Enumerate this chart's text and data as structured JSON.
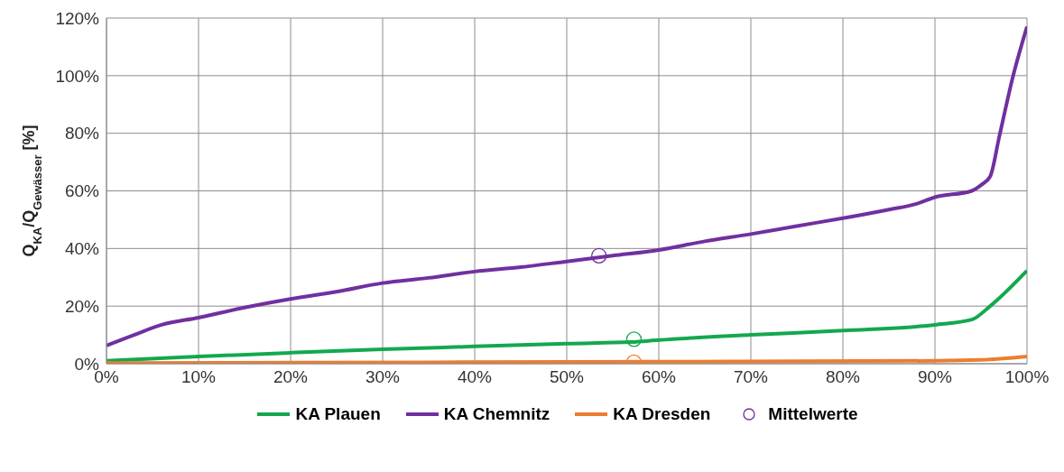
{
  "chart_data": {
    "type": "line",
    "ylabel": "Q$_{KA}$/Q$_{Gewässer}$ [%]",
    "xlim": [
      0,
      100
    ],
    "xticks": [
      {
        "value": 0,
        "label": "0%"
      },
      {
        "value": 10,
        "label": "10%"
      },
      {
        "value": 20,
        "label": "20%"
      },
      {
        "value": 30,
        "label": "30%"
      },
      {
        "value": 40,
        "label": "40%"
      },
      {
        "value": 50,
        "label": "50%"
      },
      {
        "value": 60,
        "label": "60%"
      },
      {
        "value": 70,
        "label": "70%"
      },
      {
        "value": 80,
        "label": "80%"
      },
      {
        "value": 90,
        "label": "90%"
      },
      {
        "value": 100,
        "label": "100%"
      }
    ],
    "ylim": [
      0,
      120
    ],
    "yticks": [
      {
        "value": 0,
        "label": "0%"
      },
      {
        "value": 20,
        "label": "20%"
      },
      {
        "value": 40,
        "label": "40%"
      },
      {
        "value": 60,
        "label": "60%"
      },
      {
        "value": 80,
        "label": "80%"
      },
      {
        "value": 100,
        "label": "100%"
      },
      {
        "value": 120,
        "label": "120%"
      }
    ],
    "grid": true,
    "legend": "bottom",
    "line_style": "solid",
    "series": [
      {
        "name": "KA Plauen",
        "marker": "none",
        "color": "#13a84f",
        "x": [
          0,
          10,
          20,
          30,
          40,
          50,
          57,
          60,
          70,
          80,
          90,
          94,
          96,
          100
        ],
        "values": [
          1,
          2.5,
          3.8,
          5,
          6,
          7,
          7.5,
          8.2,
          10,
          11.5,
          13.5,
          15.3,
          20,
          32.3
        ]
      },
      {
        "name": "KA Chemnitz",
        "marker": "none",
        "color": "#7030a0",
        "x": [
          0,
          3,
          6,
          10,
          15,
          20,
          25,
          30,
          35,
          40,
          45,
          50,
          55,
          60,
          65,
          70,
          75,
          80,
          85,
          88,
          90,
          94,
          95,
          96,
          97,
          98.5,
          100
        ],
        "values": [
          6.3,
          10,
          13.5,
          16,
          19.5,
          22.5,
          25,
          28,
          29.8,
          32,
          33.5,
          35.5,
          37.5,
          39.5,
          42.5,
          45,
          47.8,
          50.5,
          53.5,
          55.5,
          57.8,
          60,
          62,
          65,
          79,
          100,
          117
        ]
      },
      {
        "name": "KA Dresden",
        "marker": "none",
        "color": "#ed7d31",
        "x": [
          0,
          20,
          50,
          90,
          95,
          100
        ],
        "values": [
          0.2,
          0.4,
          0.6,
          1,
          1.3,
          2.5
        ]
      },
      {
        "name": "Mittelwerte",
        "type": "scatter",
        "marker": "circle",
        "color": "#7030a0",
        "colors": [
          "#7030a0",
          "#13a84f",
          "#ed7d31"
        ],
        "x": [
          53.5,
          57.3,
          57.3
        ],
        "values": [
          37.5,
          8.5,
          0.5
        ]
      }
    ]
  }
}
